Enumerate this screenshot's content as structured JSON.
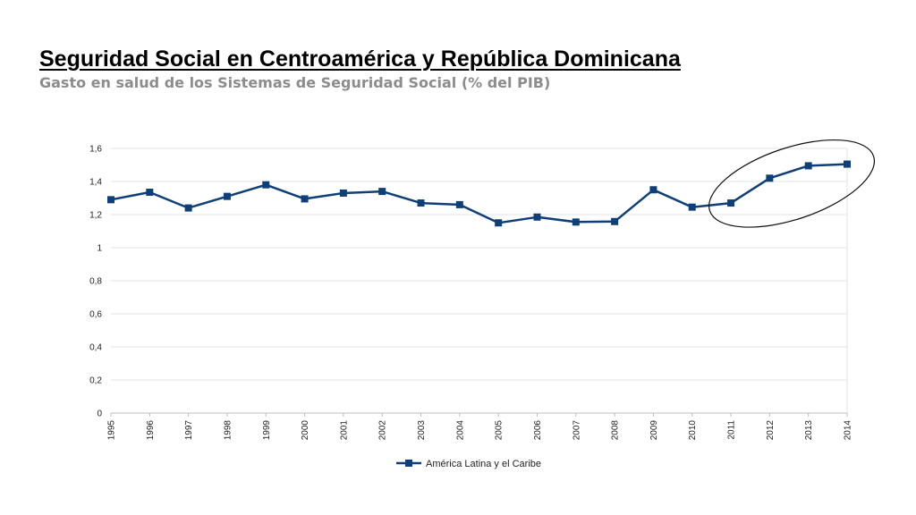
{
  "header": {
    "title": "Seguridad Social en Centroamérica y República Dominicana",
    "subtitle": "Gasto en salud de los Sistemas de Seguridad Social (% del PIB)"
  },
  "colors": {
    "series": "#0e3f78",
    "grid": "#e3e3e3",
    "axis": "#bdbdbd",
    "annotation": "#111111"
  },
  "chart_data": {
    "type": "line",
    "title": "Gasto en salud de los Sistemas de Seguridad Social (% del PIB)",
    "xlabel": "",
    "ylabel": "",
    "ylim": [
      0,
      1.6
    ],
    "grid": true,
    "legend_position": "bottom-center",
    "y_ticks": [
      "0",
      "0,2",
      "0,4",
      "0,6",
      "0,8",
      "1",
      "1,2",
      "1,4",
      "1,6"
    ],
    "categories": [
      "1995",
      "1996",
      "1997",
      "1998",
      "1999",
      "2000",
      "2001",
      "2002",
      "2003",
      "2004",
      "2005",
      "2006",
      "2007",
      "2008",
      "2009",
      "2010",
      "2011",
      "2012",
      "2013",
      "2014"
    ],
    "series": [
      {
        "name": "América Latina y el Caribe",
        "values": [
          1.29,
          1.335,
          1.24,
          1.31,
          1.38,
          1.295,
          1.33,
          1.34,
          1.27,
          1.26,
          1.15,
          1.185,
          1.155,
          1.158,
          1.35,
          1.245,
          1.27,
          1.42,
          1.495,
          1.505
        ]
      }
    ],
    "annotations": [
      {
        "type": "ellipse-highlight",
        "categories": [
          "2011",
          "2012",
          "2013",
          "2014"
        ]
      }
    ]
  }
}
